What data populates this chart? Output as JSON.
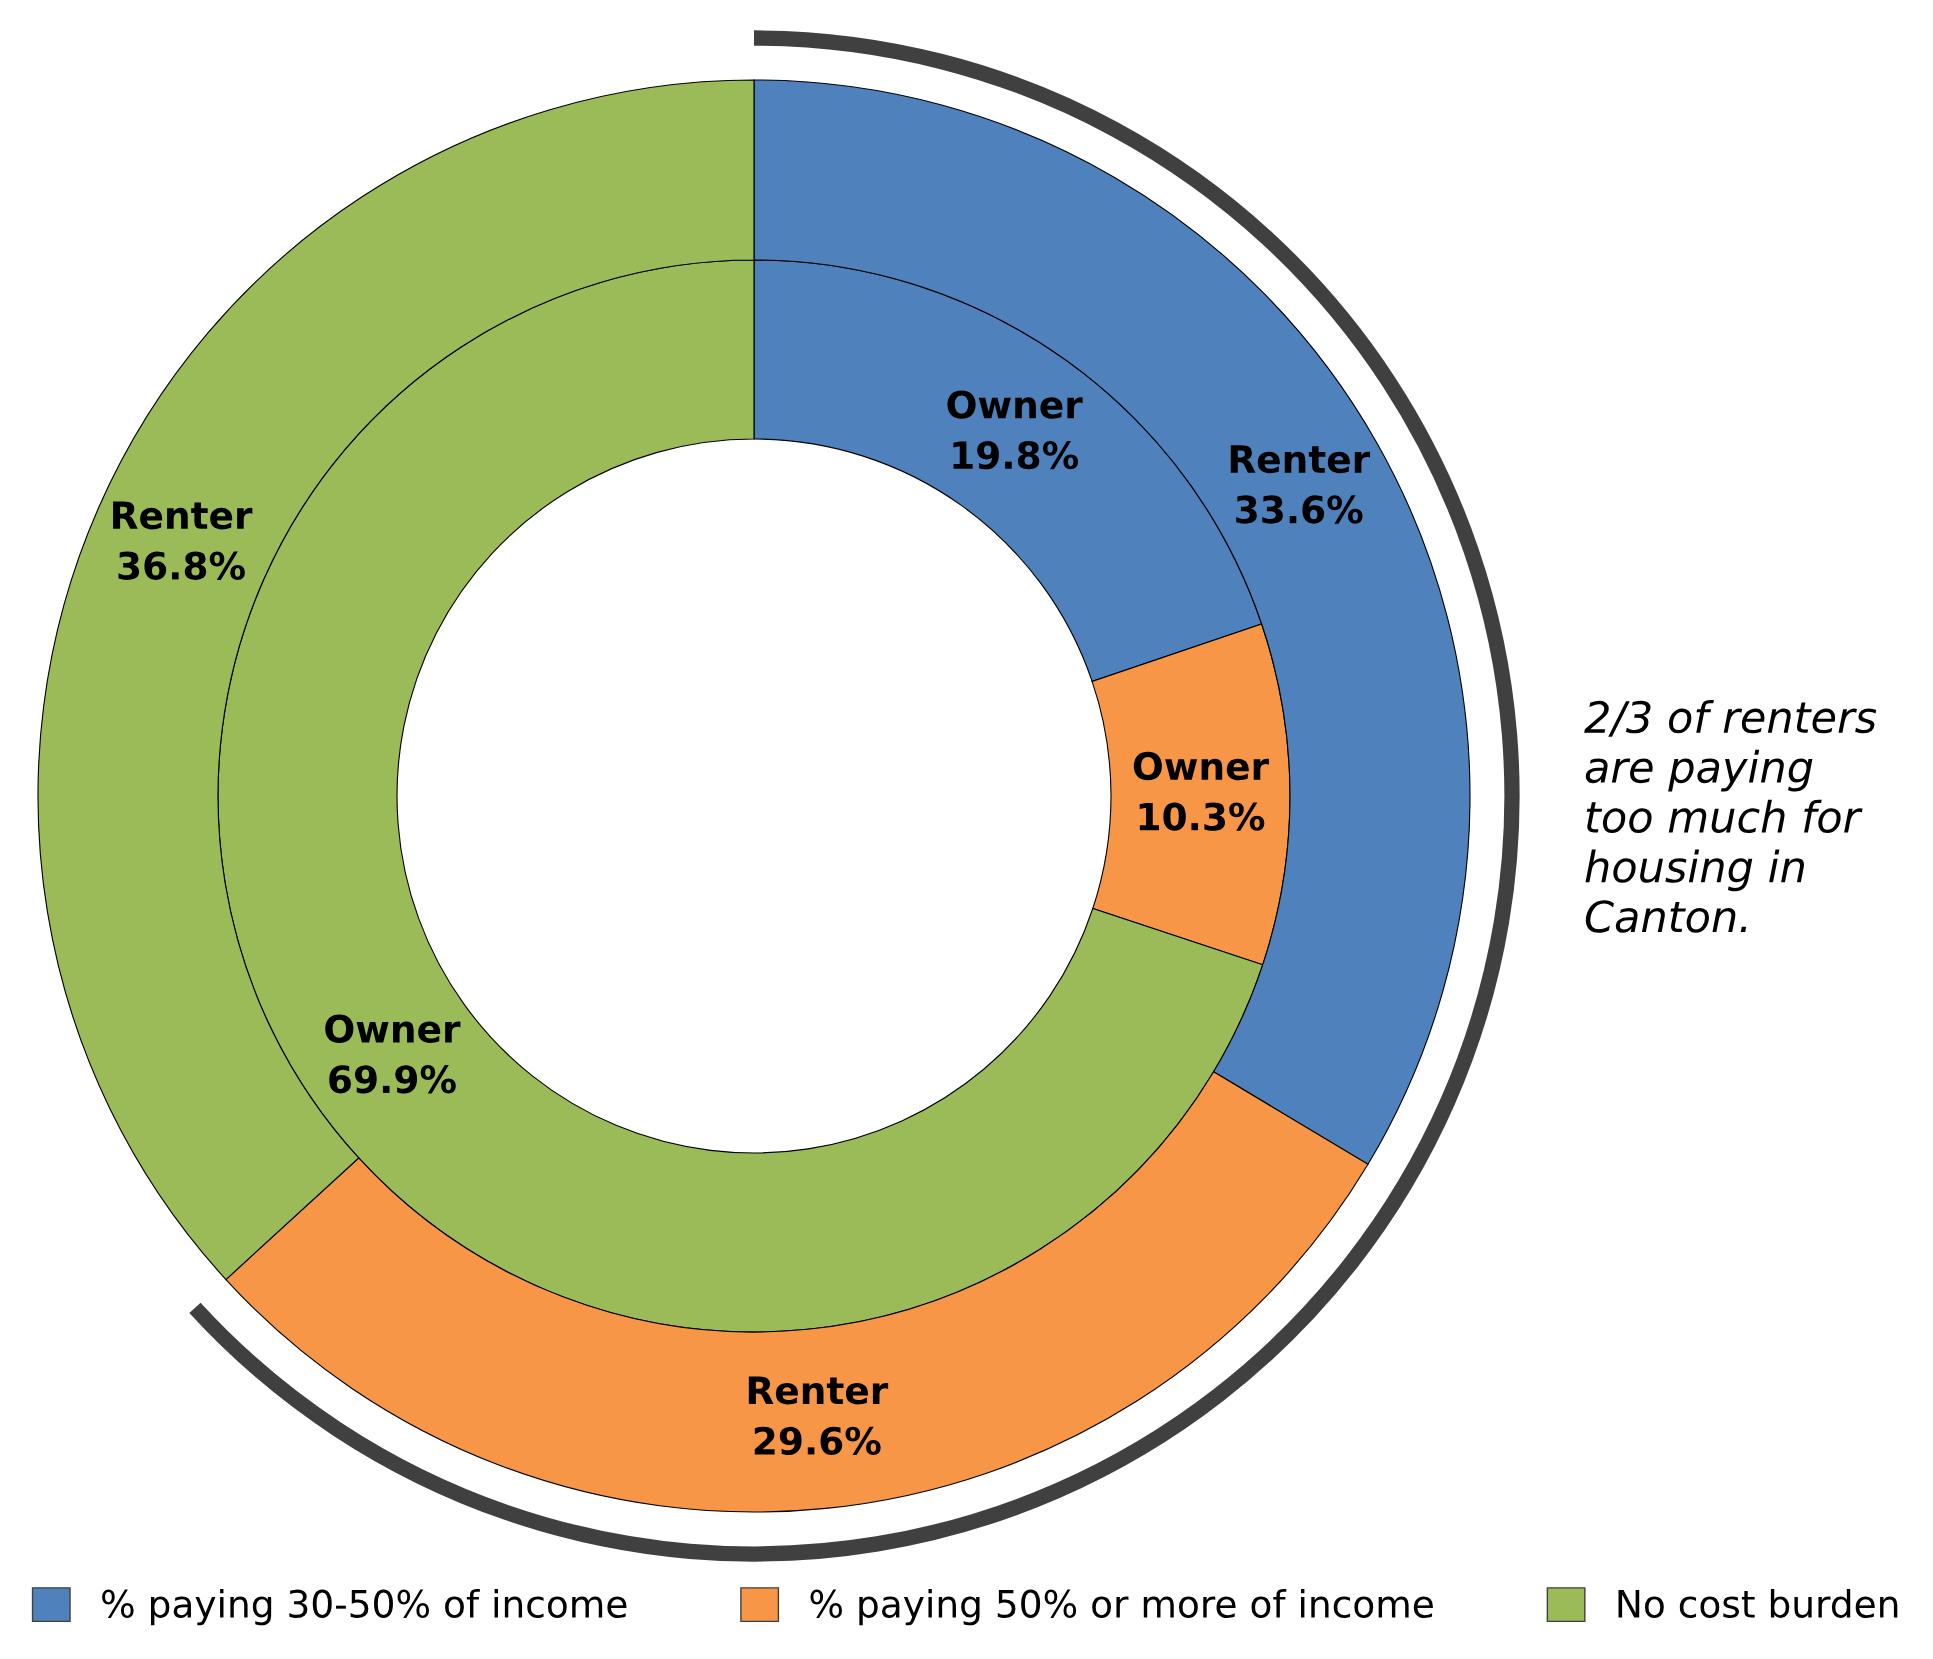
{
  "chart_data": {
    "type": "donut",
    "categories": [
      "% paying 30-50% of income",
      "% paying 50% or more of income",
      "No cost burden"
    ],
    "colors": [
      "#4f81bd",
      "#f79646",
      "#9bbb59"
    ],
    "series": [
      {
        "name": "Owner",
        "values": [
          19.8,
          10.3,
          69.9
        ],
        "value_labels": [
          "19.8%",
          "10.3%",
          "69.9%"
        ]
      },
      {
        "name": "Renter",
        "values": [
          33.6,
          29.6,
          36.8
        ],
        "value_labels": [
          "33.6%",
          "29.6%",
          "36.8%"
        ]
      }
    ],
    "legend": "bottom",
    "annotations": [
      "2/3 of renters\nare paying\ntoo much for\nhousing in\nCanton."
    ]
  }
}
